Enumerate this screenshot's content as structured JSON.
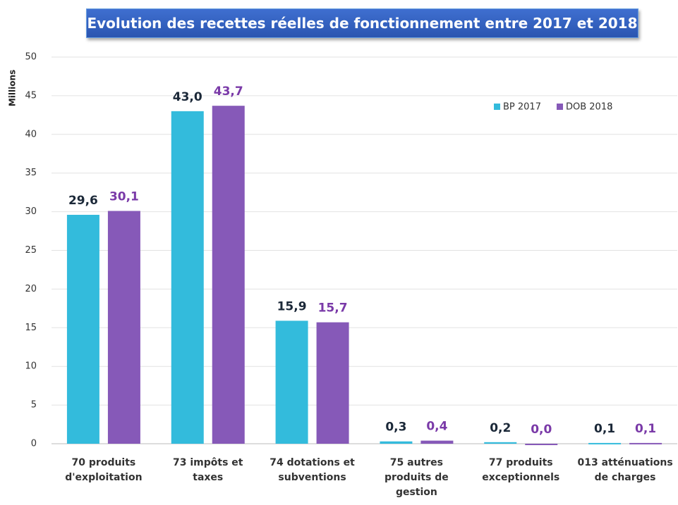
{
  "chart_data": {
    "type": "bar",
    "title": "Evolution  des recettes réelles de fonctionnement  entre 2017 et 2018",
    "ylabel": "Millions",
    "categories": [
      "70 produits\nd'exploitation",
      "73 impôts et\ntaxes",
      "74 dotations et\nsubventions",
      "75 autres\nproduits de\ngestion",
      "77 produits\nexceptionnels",
      "013 atténuations\nde charges"
    ],
    "series": [
      {
        "name": "BP 2017",
        "color": "#33bbdc",
        "label_color": "#1b2838",
        "values": [
          29.6,
          43.0,
          15.9,
          0.3,
          0.2,
          0.1
        ],
        "value_labels": [
          "29,6",
          "43,0",
          "15,9",
          "0,3",
          "0,2",
          "0,1"
        ]
      },
      {
        "name": "DOB 2018",
        "color": "#8659b8",
        "label_color": "#7a3aa8",
        "values": [
          30.1,
          43.7,
          15.7,
          0.4,
          0.0,
          0.1
        ],
        "value_labels": [
          "30,1",
          "43,7",
          "15,7",
          "0,4",
          "0,0",
          "0,1"
        ]
      }
    ],
    "ylim": [
      0,
      50
    ],
    "yticks": [
      0,
      5,
      10,
      15,
      20,
      25,
      30,
      35,
      40,
      45,
      50
    ],
    "grid": true,
    "legend": "upper right"
  }
}
